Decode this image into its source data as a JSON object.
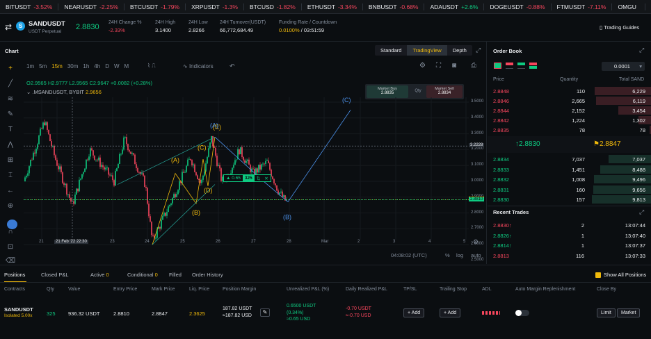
{
  "ticker": [
    {
      "sym": "BITUSDT",
      "chg": "-3.52%",
      "neg": true
    },
    {
      "sym": "NEARUSDT",
      "chg": "-2.25%",
      "neg": true
    },
    {
      "sym": "BTCUSDT",
      "chg": "-1.79%",
      "neg": true
    },
    {
      "sym": "XRPUSDT",
      "chg": "-1.3%",
      "neg": true
    },
    {
      "sym": "BTCUSD",
      "chg": "-1.82%",
      "neg": true
    },
    {
      "sym": "ETHUSDT",
      "chg": "-3.34%",
      "neg": true
    },
    {
      "sym": "BNBUSDT",
      "chg": "-0.68%",
      "neg": true
    },
    {
      "sym": "ADAUSDT",
      "chg": "+2.6%",
      "neg": false
    },
    {
      "sym": "DOGEUSDT",
      "chg": "-0.88%",
      "neg": true
    },
    {
      "sym": "FTMUSDT",
      "chg": "-7.11%",
      "neg": true
    },
    {
      "sym": "OMGU",
      "chg": "",
      "neg": true
    }
  ],
  "header": {
    "symbol": "SANDUSDT",
    "subtitle": "USDT Perpetual",
    "price": "2.8830",
    "stats": [
      {
        "label": "24H Change %",
        "value": "-2.33%",
        "cls": "neg"
      },
      {
        "label": "24H High",
        "value": "3.1400",
        "cls": ""
      },
      {
        "label": "24H Low",
        "value": "2.8266",
        "cls": ""
      },
      {
        "label": "24H Turnover(USDT)",
        "value": "66,772,684.49",
        "cls": ""
      }
    ],
    "funding_label": "Funding Rate / Countdown",
    "funding_rate": "0.0100%",
    "countdown": "/ 03:51:59",
    "guides": "Trading Guides"
  },
  "chart": {
    "title": "Chart",
    "views": [
      "Standard",
      "TradingView",
      "Depth"
    ],
    "active_view": "TradingView",
    "intervals": [
      "1m",
      "5m",
      "15m",
      "30m",
      "1h",
      "4h",
      "D",
      "W",
      "M"
    ],
    "active_interval": "15m",
    "indicators": "Indicators",
    "ohlc": "O2.9565  H2.9777  L2.9565  C2.9647  +0.0082 (+0.28%)",
    "source": ".MSANDUSDT, BYBIT",
    "source_val": "2.9656",
    "market_buy": "Market Buy",
    "market_buy_price": "2.8835",
    "qty": "Qty",
    "market_sell": "Market Sell",
    "market_sell_price": "2.8834",
    "pos_val": "0.65",
    "pos_qty": "325",
    "y_labels": [
      "3.5000",
      "3.4000",
      "3.3000",
      "3.2000",
      "3.1000",
      "3.0000",
      "2.9000",
      "2.8000",
      "2.7000",
      "2.6000",
      "2.5000"
    ],
    "y_tags": [
      {
        "v": "3.2228",
        "c": "#2b3139"
      },
      {
        "v": "2.8847",
        "c": "#f0b90b"
      },
      {
        "v": "2.8830",
        "c": "#0ecb81"
      },
      {
        "v": "2.8810",
        "c": "#0ecb81"
      }
    ],
    "x_labels": [
      "21",
      "21 Feb '22  22:30",
      "23",
      "24",
      "25",
      "26",
      "27",
      "28",
      "Mar",
      "2",
      "3",
      "4",
      "5"
    ],
    "waves": [
      "(A)",
      "(B)",
      "(C)",
      "(D)",
      "(E)",
      "(A)",
      "(B)",
      "(C)"
    ],
    "time": "04:08:02 (UTC)",
    "pct": "%",
    "log": "log",
    "auto": "auto"
  },
  "orderbook": {
    "title": "Order Book",
    "precision": "0.0001",
    "cols": [
      "Price",
      "Quantity",
      "Total SAND"
    ],
    "asks": [
      {
        "p": "2.8848",
        "q": "110",
        "t": "6,229"
      },
      {
        "p": "2.8846",
        "q": "2,665",
        "t": "6,119"
      },
      {
        "p": "2.8844",
        "q": "2,152",
        "t": "3,454"
      },
      {
        "p": "2.8842",
        "q": "1,224",
        "t": "1,302"
      },
      {
        "p": "2.8835",
        "q": "78",
        "t": "78"
      }
    ],
    "last": "↑2.8830",
    "mark": "⚑2.8847",
    "bids": [
      {
        "p": "2.8834",
        "q": "7,037",
        "t": "7,037"
      },
      {
        "p": "2.8833",
        "q": "1,451",
        "t": "8,488"
      },
      {
        "p": "2.8832",
        "q": "1,008",
        "t": "9,496"
      },
      {
        "p": "2.8831",
        "q": "160",
        "t": "9,656"
      },
      {
        "p": "2.8830",
        "q": "157",
        "t": "9,813"
      }
    ],
    "recent_title": "Recent Trades",
    "trades": [
      {
        "p": "2.8830↑",
        "q": "2",
        "t": "13:07:44",
        "neg": true
      },
      {
        "p": "2.8826↑",
        "q": "1",
        "t": "13:07:40",
        "neg": false
      },
      {
        "p": "2.8814↑",
        "q": "1",
        "t": "13:07:37",
        "neg": false
      },
      {
        "p": "2.8813",
        "q": "116",
        "t": "13:07:33",
        "neg": true
      }
    ]
  },
  "bottom": {
    "tabs": [
      {
        "label": "Positions",
        "n": ""
      },
      {
        "label": "Closed P&L",
        "n": ""
      },
      {
        "label": "Active",
        "n": "0"
      },
      {
        "label": "Conditional",
        "n": "0"
      },
      {
        "label": "Filled",
        "n": ""
      },
      {
        "label": "Order History",
        "n": ""
      }
    ],
    "show_all": "Show All Positions",
    "cols": [
      "Contracts",
      "Qty",
      "Value",
      "Entry Price",
      "Mark Price",
      "Liq. Price",
      "Position Margin",
      "Unrealized P&L (%)",
      "Daily Realized P&L",
      "TP/SL",
      "Trailing Stop",
      "ADL",
      "Auto Margin Replenishment",
      "Close By"
    ],
    "row": {
      "contract": "SANDUSDT",
      "leverage": "Isolated 5.00x",
      "qty": "325",
      "value": "936.32 USDT",
      "entry": "2.8810",
      "mark": "2.8847",
      "liq": "2.3625",
      "margin1": "187.82 USDT",
      "margin2": "≈187.82 USD",
      "upnl1": "0.6500 USDT",
      "upnl2": "(0.34%)",
      "upnl3": "≈0.65 USD",
      "drpnl1": "-0.70 USDT",
      "drpnl2": "≈-0.70 USD",
      "add": "+ Add",
      "add2": "+ Add",
      "limit": "Limit",
      "market": "Market"
    }
  }
}
